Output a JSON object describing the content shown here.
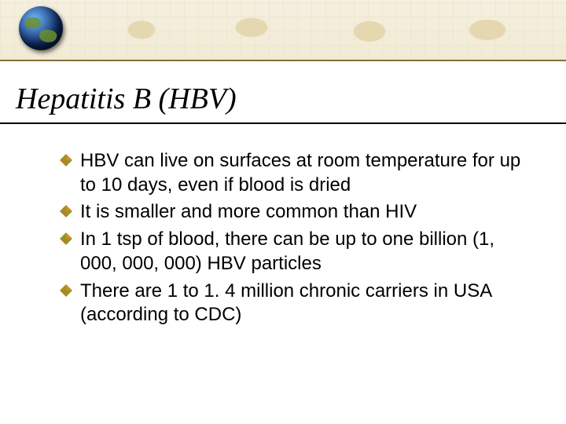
{
  "title": "Hepatitis B (HBV)",
  "bullet_colors": {
    "nw": "#8a9a2f",
    "ne": "#d28a1f",
    "sw": "#c97a18",
    "se": "#8a9a2f"
  },
  "title_style": {
    "font_family": "Times New Roman",
    "italic": true,
    "fontsize_pt": 38,
    "color": "#000000",
    "underline_color": "#000000"
  },
  "body_style": {
    "font_family": "Verdana",
    "fontsize_pt": 24,
    "color": "#000000",
    "line_height": 1.28
  },
  "banner": {
    "bg": "#f5f0e0",
    "map_tint": "#d8c68a",
    "grid": "#e9e0c2",
    "bottom_border": "#8a6d3b",
    "globe_present": true
  },
  "items": [
    "HBV can live on surfaces at room temperature for up to 10 days, even if blood is dried",
    "It is smaller and more common than HIV",
    "In 1 tsp of blood, there can be up to one billion (1, 000, 000, 000) HBV particles",
    "There are 1 to 1. 4 million chronic carriers in USA (according to CDC)"
  ]
}
